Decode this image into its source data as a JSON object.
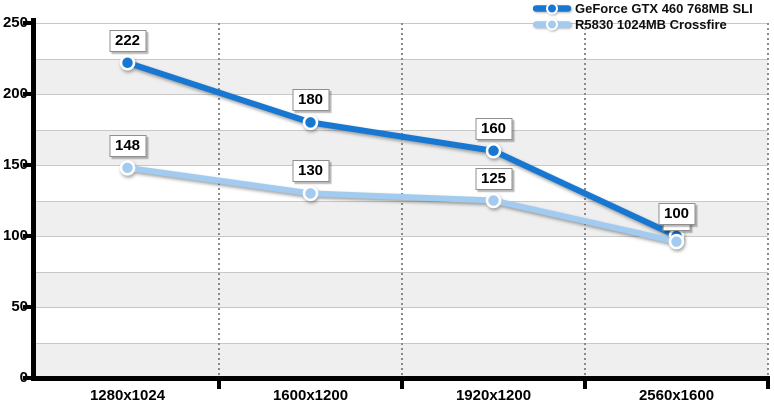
{
  "chart_data": {
    "type": "line",
    "title": "",
    "xlabel": "",
    "ylabel": "",
    "categories": [
      "1280x1024",
      "1600x1200",
      "1920x1200",
      "2560x1600"
    ],
    "series": [
      {
        "name": "GeForce GTX 460 768MB SLI",
        "color": "#1877D1",
        "values": [
          222,
          180,
          160,
          100
        ]
      },
      {
        "name": "R5830 1024MB Crossfire",
        "color": "#A3CBF0",
        "values": [
          148,
          130,
          125,
          96
        ]
      }
    ],
    "ylim": [
      0,
      250
    ],
    "y_ticks": [
      0,
      50,
      100,
      150,
      200,
      250
    ],
    "y_tick_step": 50,
    "band_step": 25,
    "data_labels": true,
    "legend_position": "top-right",
    "grid": {
      "horizontal_lines_every": 25,
      "alternating_row_bands": true,
      "vertical_dotted_at_category_boundaries": true
    }
  },
  "colors": {
    "background": "#FFFFFF",
    "band_gray": "#EFEFEF",
    "grid_line": "#C8C8C8",
    "dotted_line": "#8A8A8A",
    "axis": "#000000",
    "marker_ring": "#FFFFFF",
    "label_box_bg": "#FFFFFF",
    "label_box_border": "#8F8F8F"
  }
}
